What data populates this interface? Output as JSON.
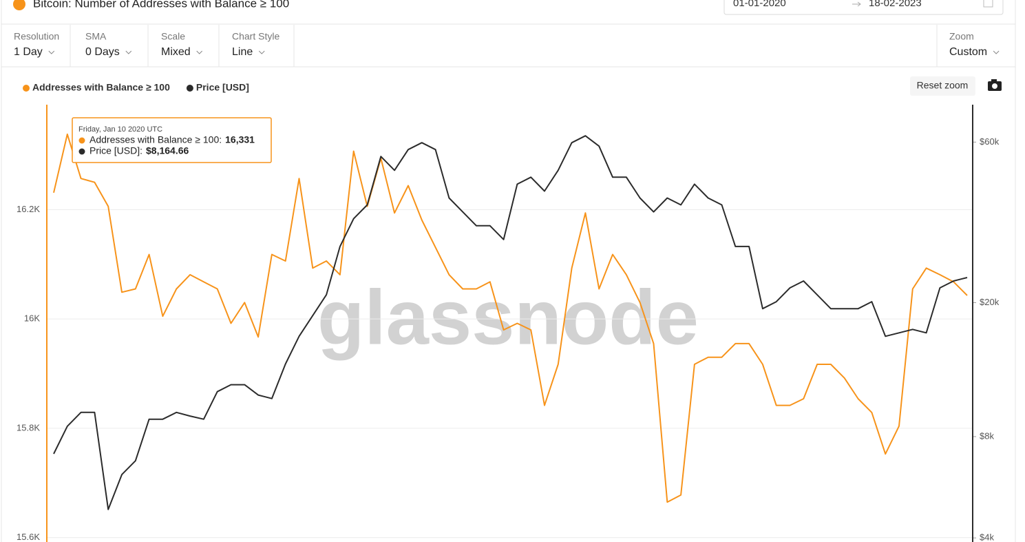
{
  "header": {
    "title": "Bitcoin: Number of Addresses with Balance ≥ 100",
    "date_from": "01-01-2020",
    "date_to": "18-02-2023"
  },
  "toolbar": [
    {
      "label": "Resolution",
      "value": "1 Day"
    },
    {
      "label": "SMA",
      "value": "0 Days"
    },
    {
      "label": "Scale",
      "value": "Mixed"
    },
    {
      "label": "Chart Style",
      "value": "Line"
    }
  ],
  "zoom": {
    "label": "Zoom",
    "value": "Custom"
  },
  "reset_zoom": "Reset zoom",
  "watermark": "glassnode",
  "tooltip": {
    "date": "Friday, Jan 10 2020 UTC",
    "rows": [
      {
        "label": "Addresses with Balance ≥ 100:",
        "value": "16,331"
      },
      {
        "label": "Price [USD]:",
        "value": "$8,164.66"
      }
    ]
  },
  "chart_data": {
    "type": "line",
    "series": [
      {
        "name": "Addresses with Balance ≥ 100",
        "color": "#f7931a",
        "values": [
          16231,
          16338,
          16257,
          16250,
          16206,
          16049,
          16055,
          16118,
          16005,
          16055,
          16081,
          16068,
          16055,
          15992,
          16030,
          15967,
          16118,
          16106,
          16257,
          16093,
          16106,
          16081,
          16307,
          16206,
          16294,
          16194,
          16244,
          16181,
          16131,
          16081,
          16055,
          16055,
          16068,
          15980,
          15992,
          15980,
          15842,
          15917,
          16093,
          16194,
          16055,
          16118,
          16081,
          16030,
          15955,
          15665,
          15678,
          15917,
          15930,
          15930,
          15955,
          15955,
          15917,
          15842,
          15842,
          15854,
          15917,
          15917,
          15892,
          15854,
          15829,
          15753,
          15804,
          16055,
          16093,
          16081,
          16068,
          16043
        ]
      },
      {
        "name": "Price [USD]",
        "color": "#2b2b2b",
        "axis": "y2",
        "values": [
          7110,
          8590,
          9440,
          9440,
          4860,
          6170,
          6780,
          9010,
          9010,
          9440,
          9210,
          9010,
          10880,
          11410,
          11410,
          10630,
          10380,
          13150,
          15890,
          18310,
          21100,
          29380,
          35520,
          39040,
          54390,
          49460,
          56990,
          59740,
          56990,
          40930,
          37220,
          33850,
          33850,
          30810,
          44990,
          47180,
          42910,
          49460,
          59740,
          62630,
          58350,
          47180,
          47180,
          40930,
          37220,
          40930,
          39040,
          44990,
          40930,
          39040,
          29380,
          29380,
          19200,
          20130,
          22130,
          23200,
          21100,
          19200,
          19200,
          19200,
          20130,
          15890,
          16270,
          16660,
          16270,
          22130,
          23200,
          23750
        ]
      }
    ],
    "ylim": [
      15592,
      16392
    ],
    "yticks": [
      {
        "value": 15600,
        "label": "15.6K"
      },
      {
        "value": 15800,
        "label": "15.8K"
      },
      {
        "value": 16000,
        "label": "16K"
      },
      {
        "value": 16200,
        "label": "16.2K"
      }
    ],
    "y2lim": [
      3890,
      77500
    ],
    "y2scale": "log",
    "y2ticks": [
      {
        "value": 4000,
        "label": "$4k"
      },
      {
        "value": 8000,
        "label": "$8k"
      },
      {
        "value": 20000,
        "label": "$20k"
      },
      {
        "value": 60000,
        "label": "$60k"
      }
    ],
    "grid": true
  }
}
